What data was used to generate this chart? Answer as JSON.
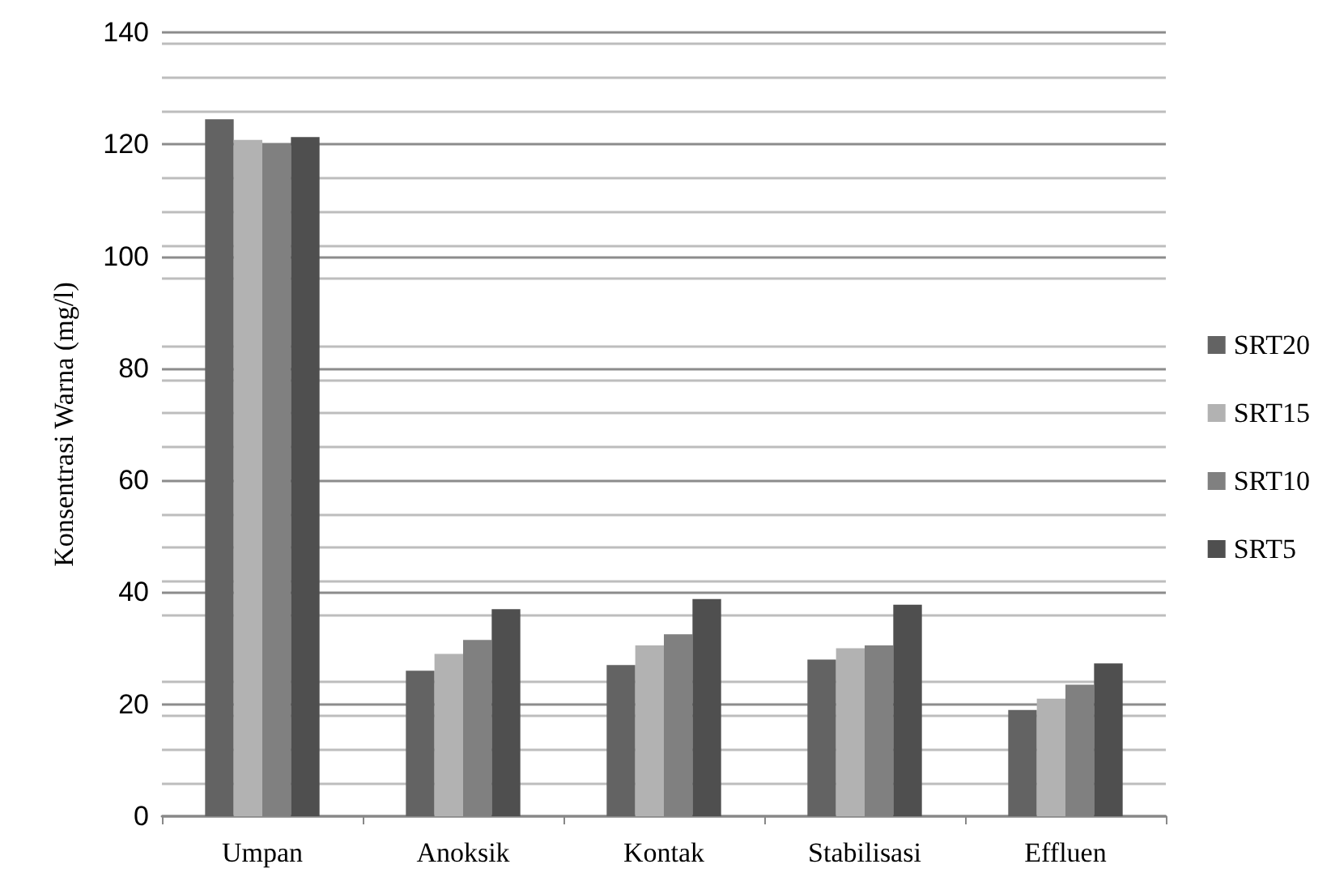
{
  "chart_data": {
    "type": "bar",
    "ylabel": "Konsentrasi Warna (mg/l)",
    "categories": [
      "Umpan",
      "Anoksik",
      "Kontak",
      "Stabilisasi",
      "Effluen"
    ],
    "series": [
      {
        "name": "SRT20",
        "color": "#636363",
        "values": [
          124.5,
          26,
          27,
          28,
          19
        ]
      },
      {
        "name": "SRT15",
        "color": "#b2b2b2",
        "values": [
          120.8,
          29,
          30.5,
          30,
          21
        ]
      },
      {
        "name": "SRT10",
        "color": "#808080",
        "values": [
          120.2,
          31.5,
          32.5,
          30.5,
          23.5
        ]
      },
      {
        "name": "SRT5",
        "color": "#4f4f4f",
        "values": [
          121.3,
          37,
          38.8,
          37.8,
          27.3
        ]
      }
    ],
    "ylim": [
      0,
      140
    ],
    "yticks": [
      0,
      20,
      40,
      60,
      80,
      100,
      120,
      140
    ],
    "grid": "y",
    "legend": "right"
  }
}
